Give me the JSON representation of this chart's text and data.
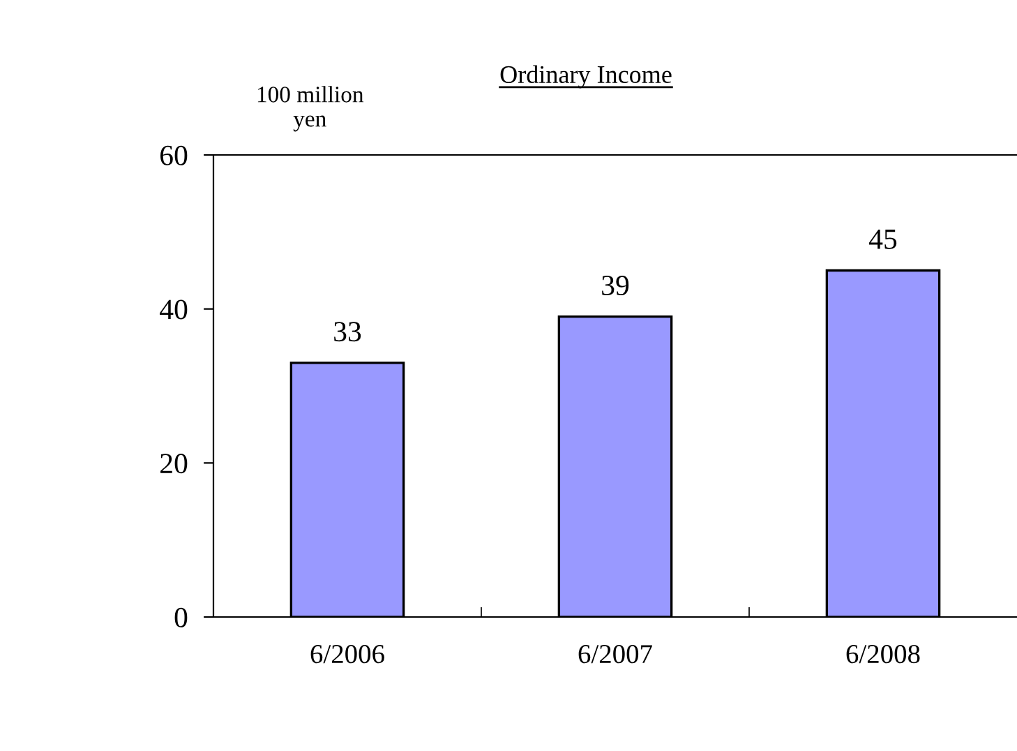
{
  "chart_data": {
    "type": "bar",
    "title": "Ordinary Income",
    "ylabel": "100 million\nyen",
    "categories": [
      "6/2006",
      "6/2007",
      "6/2008"
    ],
    "values": [
      33,
      39,
      45
    ],
    "color": "#9999ff",
    "ylim": [
      0,
      60
    ],
    "yticks": [
      0,
      20,
      40,
      60
    ],
    "data_labels": true,
    "grid": false,
    "legend": false
  }
}
